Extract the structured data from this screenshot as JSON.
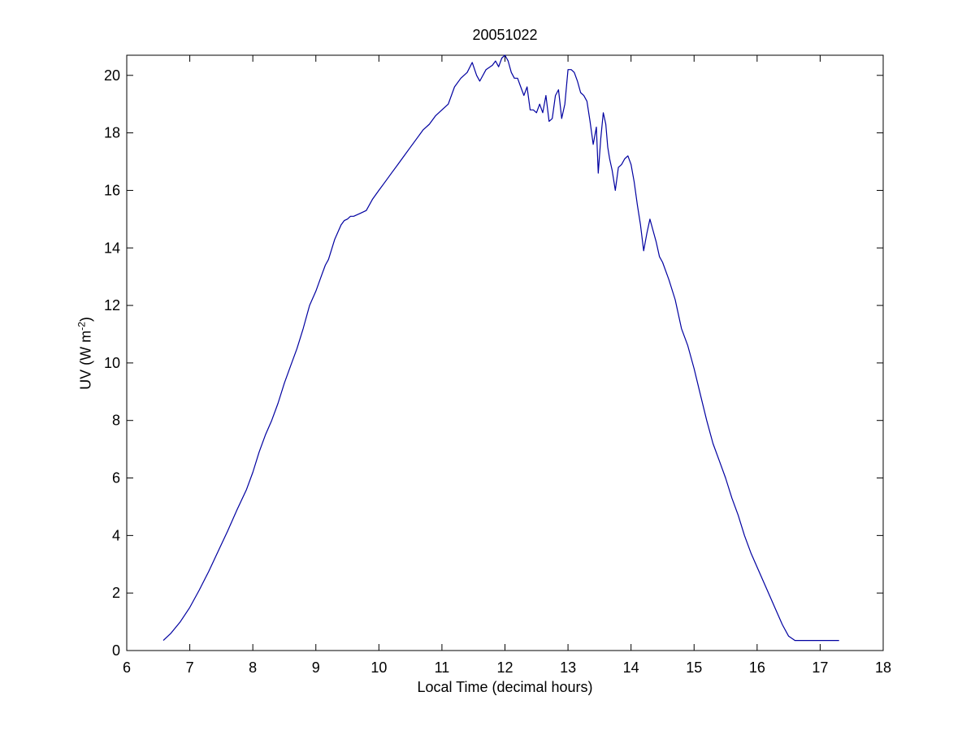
{
  "chart_data": {
    "type": "line",
    "title": "20051022",
    "xlabel": "Local Time (decimal hours)",
    "ylabel": {
      "main": "UV (W m",
      "exponent": "-2",
      "close": ")"
    },
    "xlim": [
      6,
      18
    ],
    "ylim": [
      0,
      20.7
    ],
    "xticks": [
      6,
      7,
      8,
      9,
      10,
      11,
      12,
      13,
      14,
      15,
      16,
      17,
      18
    ],
    "yticks": [
      0,
      2,
      4,
      6,
      8,
      10,
      12,
      14,
      16,
      18,
      20
    ],
    "grid": false,
    "line_color": "#0000a0",
    "series": [
      {
        "x": [
          6.58,
          6.7,
          6.85,
          7.0,
          7.15,
          7.3,
          7.45,
          7.6,
          7.75,
          7.9,
          8.0,
          8.1,
          8.2,
          8.3,
          8.4,
          8.5,
          8.6,
          8.7,
          8.8,
          8.9,
          9.0,
          9.1,
          9.15,
          9.2,
          9.3,
          9.4,
          9.45,
          9.5,
          9.55,
          9.6,
          9.7,
          9.8,
          9.9,
          10.0,
          10.1,
          10.2,
          10.3,
          10.4,
          10.5,
          10.6,
          10.7,
          10.8,
          10.9,
          11.0,
          11.1,
          11.2,
          11.3,
          11.4,
          11.48,
          11.55,
          11.6,
          11.7,
          11.8,
          11.85,
          11.9,
          11.95,
          12.0,
          12.05,
          12.1,
          12.15,
          12.2,
          12.25,
          12.3,
          12.35,
          12.4,
          12.45,
          12.5,
          12.55,
          12.6,
          12.65,
          12.7,
          12.75,
          12.8,
          12.85,
          12.9,
          12.95,
          13.0,
          13.05,
          13.1,
          13.15,
          13.2,
          13.25,
          13.3,
          13.35,
          13.4,
          13.45,
          13.48,
          13.52,
          13.56,
          13.6,
          13.63,
          13.66,
          13.7,
          13.75,
          13.8,
          13.85,
          13.9,
          13.95,
          14.0,
          14.05,
          14.1,
          14.15,
          14.2,
          14.25,
          14.3,
          14.35,
          14.4,
          14.45,
          14.5,
          14.6,
          14.7,
          14.8,
          14.9,
          15.0,
          15.1,
          15.2,
          15.3,
          15.4,
          15.5,
          15.6,
          15.7,
          15.8,
          15.9,
          16.0,
          16.1,
          16.2,
          16.3,
          16.4,
          16.5,
          16.6,
          16.7,
          16.8,
          16.9,
          17.0,
          17.1,
          17.2,
          17.3
        ],
        "y": [
          0.35,
          0.6,
          1.0,
          1.5,
          2.1,
          2.75,
          3.45,
          4.15,
          4.9,
          5.6,
          6.2,
          6.9,
          7.5,
          8.0,
          8.6,
          9.3,
          9.9,
          10.5,
          11.2,
          12.0,
          12.5,
          13.1,
          13.4,
          13.6,
          14.3,
          14.8,
          14.95,
          15.0,
          15.1,
          15.1,
          15.2,
          15.3,
          15.7,
          16.0,
          16.3,
          16.6,
          16.9,
          17.2,
          17.5,
          17.8,
          18.1,
          18.3,
          18.6,
          18.8,
          19.0,
          19.6,
          19.9,
          20.1,
          20.45,
          20.0,
          19.8,
          20.2,
          20.35,
          20.5,
          20.3,
          20.6,
          20.7,
          20.5,
          20.1,
          19.9,
          19.9,
          19.6,
          19.3,
          19.6,
          18.8,
          18.8,
          18.7,
          19.0,
          18.7,
          19.3,
          18.4,
          18.5,
          19.3,
          19.5,
          18.5,
          19.0,
          20.2,
          20.2,
          20.1,
          19.8,
          19.4,
          19.3,
          19.1,
          18.4,
          17.6,
          18.2,
          16.6,
          17.8,
          18.7,
          18.3,
          17.5,
          17.1,
          16.7,
          16.0,
          16.8,
          16.9,
          17.1,
          17.2,
          16.9,
          16.3,
          15.5,
          14.8,
          13.9,
          14.5,
          15.0,
          14.6,
          14.2,
          13.7,
          13.5,
          12.9,
          12.2,
          11.2,
          10.6,
          9.8,
          8.9,
          8.0,
          7.2,
          6.6,
          6.0,
          5.3,
          4.7,
          4.0,
          3.4,
          2.9,
          2.4,
          1.9,
          1.4,
          0.9,
          0.5,
          0.35,
          0.35,
          0.35,
          0.35,
          0.35,
          0.35,
          0.35,
          0.35
        ]
      }
    ]
  }
}
